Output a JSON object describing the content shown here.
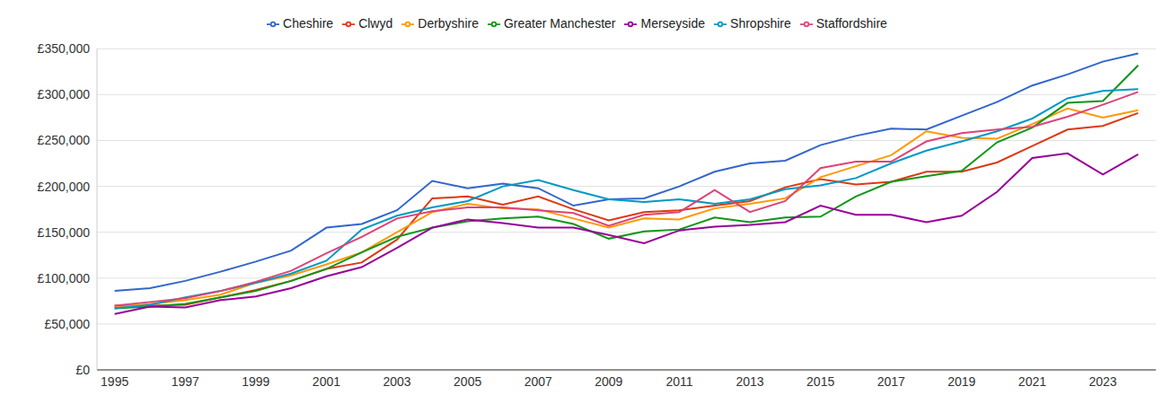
{
  "chart_data": {
    "type": "line",
    "x": [
      1995,
      1996,
      1997,
      1998,
      1999,
      2000,
      2001,
      2002,
      2003,
      2004,
      2005,
      2006,
      2007,
      2008,
      2009,
      2010,
      2011,
      2012,
      2013,
      2014,
      2015,
      2016,
      2017,
      2018,
      2019,
      2020,
      2021,
      2022,
      2023,
      2024
    ],
    "series": [
      {
        "name": "Cheshire",
        "color": "#3366cc",
        "values": [
          86000,
          89000,
          97000,
          107000,
          118000,
          130000,
          155000,
          159000,
          174000,
          206000,
          198000,
          203000,
          198000,
          179000,
          186000,
          187000,
          200000,
          216000,
          225000,
          228000,
          245000,
          255000,
          263000,
          262000,
          277000,
          292000,
          310000,
          322000,
          336000,
          345000
        ]
      },
      {
        "name": "Clwyd",
        "color": "#dc3912",
        "values": [
          70000,
          70000,
          71000,
          79000,
          87000,
          97000,
          110000,
          117000,
          142000,
          187000,
          189000,
          180000,
          189000,
          175000,
          163000,
          172000,
          174000,
          179000,
          184000,
          199000,
          208000,
          202000,
          205000,
          216000,
          216000,
          226000,
          244000,
          262000,
          266000,
          280000
        ]
      },
      {
        "name": "Derbyshire",
        "color": "#ff9900",
        "values": [
          68000,
          72000,
          76000,
          82000,
          95000,
          103000,
          115000,
          128000,
          150000,
          172000,
          181000,
          176000,
          175000,
          165000,
          155000,
          165000,
          164000,
          176000,
          181000,
          187000,
          210000,
          222000,
          234000,
          260000,
          253000,
          252000,
          268000,
          285000,
          275000,
          283000
        ]
      },
      {
        "name": "Greater Manchester",
        "color": "#109618",
        "values": [
          67000,
          69000,
          72000,
          79000,
          86000,
          97000,
          110000,
          128000,
          145000,
          155000,
          162000,
          165000,
          167000,
          159000,
          143000,
          151000,
          153000,
          166000,
          161000,
          166000,
          167000,
          189000,
          205000,
          211000,
          217000,
          248000,
          264000,
          291000,
          293000,
          332000
        ]
      },
      {
        "name": "Merseyside",
        "color": "#990099",
        "values": [
          61000,
          69000,
          68000,
          76000,
          80000,
          89000,
          102000,
          112000,
          133000,
          155000,
          164000,
          160000,
          155000,
          155000,
          147000,
          138000,
          152000,
          156000,
          158000,
          161000,
          179000,
          169000,
          169000,
          161000,
          168000,
          194000,
          231000,
          236000,
          213000,
          235000
        ]
      },
      {
        "name": "Shropshire",
        "color": "#0099c6",
        "values": [
          67000,
          71000,
          79000,
          86000,
          95000,
          105000,
          119000,
          153000,
          168000,
          177000,
          184000,
          200000,
          207000,
          196000,
          186000,
          183000,
          186000,
          181000,
          186000,
          197000,
          201000,
          209000,
          225000,
          239000,
          249000,
          260000,
          274000,
          296000,
          304000,
          306000
        ]
      },
      {
        "name": "Staffordshire",
        "color": "#dd4477",
        "values": [
          70000,
          74000,
          78000,
          86000,
          96000,
          108000,
          127000,
          145000,
          165000,
          173000,
          177000,
          177000,
          174000,
          171000,
          157000,
          169000,
          172000,
          196000,
          172000,
          184000,
          220000,
          227000,
          227000,
          249000,
          258000,
          262000,
          265000,
          276000,
          289000,
          303000
        ]
      }
    ],
    "xlim": [
      1994.5,
      2024.5
    ],
    "xticks": [
      1995,
      1997,
      1999,
      2001,
      2003,
      2005,
      2007,
      2009,
      2011,
      2013,
      2015,
      2017,
      2019,
      2021,
      2023
    ],
    "ylim": [
      0,
      350000
    ],
    "yticks": [
      {
        "value": 0,
        "label": "£0"
      },
      {
        "value": 50000,
        "label": "£50,000"
      },
      {
        "value": 100000,
        "label": "£100,000"
      },
      {
        "value": 150000,
        "label": "£150,000"
      },
      {
        "value": 200000,
        "label": "£200,000"
      },
      {
        "value": 250000,
        "label": "£250,000"
      },
      {
        "value": 300000,
        "label": "£300,000"
      },
      {
        "value": 350000,
        "label": "£350,000"
      }
    ],
    "grid": true,
    "legend": "top"
  }
}
